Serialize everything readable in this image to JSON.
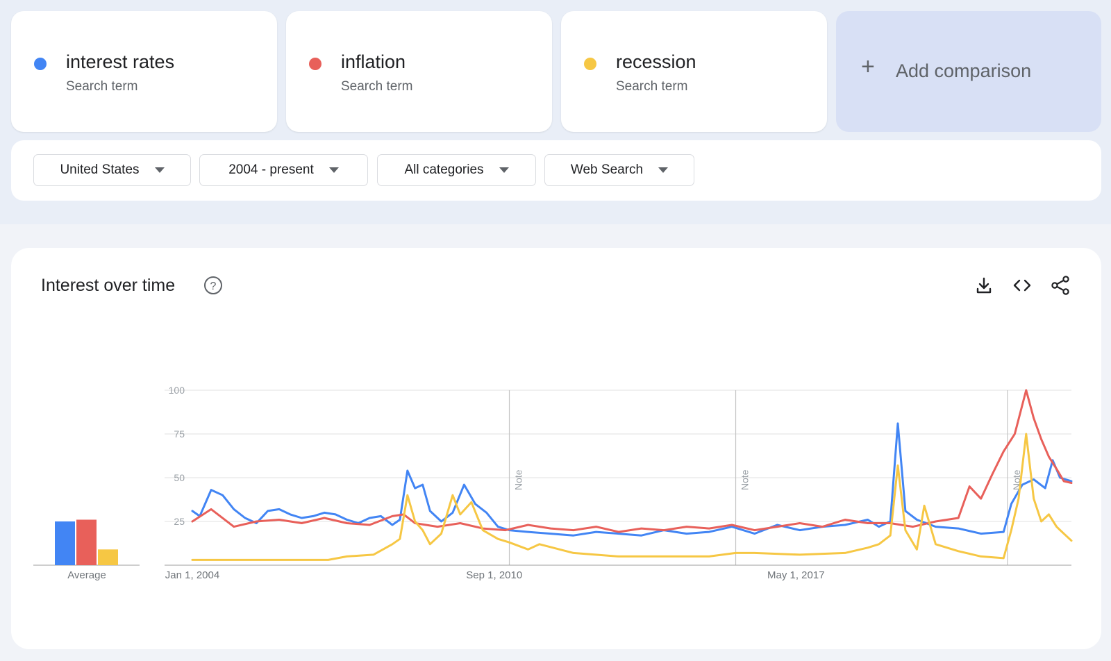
{
  "terms": [
    {
      "name": "interest rates",
      "type": "Search term",
      "color": "#4285f4"
    },
    {
      "name": "inflation",
      "type": "Search term",
      "color": "#e8605a"
    },
    {
      "name": "recession",
      "type": "Search term",
      "color": "#f6c744"
    }
  ],
  "add_comparison": {
    "icon": "plus-icon",
    "label": "Add comparison"
  },
  "filters": [
    {
      "label": "United States"
    },
    {
      "label": "2004 - present"
    },
    {
      "label": "All categories"
    },
    {
      "label": "Web Search"
    }
  ],
  "chart_panel": {
    "title": "Interest over time",
    "icons": [
      "help-icon",
      "download-icon",
      "embed-code-icon",
      "share-icon"
    ]
  },
  "chart_data": [
    {
      "type": "bar",
      "categories": [
        "interest rates",
        "inflation",
        "recession"
      ],
      "values": [
        25,
        26,
        9
      ],
      "xlabel": "Average",
      "colors": [
        "#4285f4",
        "#e8605a",
        "#f6c744"
      ]
    },
    {
      "type": "line",
      "x_range": [
        "2004-01-01",
        "2023-06-01"
      ],
      "x_ticks": [
        {
          "date": "2004-01-01",
          "label": "Jan 1, 2004"
        },
        {
          "date": "2010-09-01",
          "label": "Sep 1, 2010"
        },
        {
          "date": "2017-05-01",
          "label": "May 1, 2017"
        }
      ],
      "ylim": [
        0,
        100
      ],
      "y_ticks": [
        25,
        50,
        75,
        100
      ],
      "grid": true,
      "notes": [
        {
          "date": "2011-01-01",
          "label": "Note"
        },
        {
          "date": "2016-01-01",
          "label": "Note"
        },
        {
          "date": "2022-01-01",
          "label": "Note"
        }
      ],
      "series": [
        {
          "name": "interest rates",
          "color": "#4285f4",
          "points": [
            [
              "2004-01-01",
              31
            ],
            [
              "2004-03-01",
              28
            ],
            [
              "2004-06-01",
              43
            ],
            [
              "2004-09-01",
              40
            ],
            [
              "2004-12-01",
              32
            ],
            [
              "2005-03-01",
              27
            ],
            [
              "2005-06-01",
              24
            ],
            [
              "2005-09-01",
              31
            ],
            [
              "2005-12-01",
              32
            ],
            [
              "2006-03-01",
              29
            ],
            [
              "2006-06-01",
              27
            ],
            [
              "2006-09-01",
              28
            ],
            [
              "2006-12-01",
              30
            ],
            [
              "2007-03-01",
              29
            ],
            [
              "2007-06-01",
              26
            ],
            [
              "2007-09-01",
              24
            ],
            [
              "2007-12-01",
              27
            ],
            [
              "2008-03-01",
              28
            ],
            [
              "2008-06-01",
              23
            ],
            [
              "2008-08-01",
              26
            ],
            [
              "2008-10-01",
              54
            ],
            [
              "2008-12-01",
              44
            ],
            [
              "2009-02-01",
              46
            ],
            [
              "2009-04-01",
              31
            ],
            [
              "2009-07-01",
              25
            ],
            [
              "2009-10-01",
              30
            ],
            [
              "2010-01-01",
              46
            ],
            [
              "2010-04-01",
              35
            ],
            [
              "2010-07-01",
              30
            ],
            [
              "2010-10-01",
              22
            ],
            [
              "2011-01-01",
              20
            ],
            [
              "2011-06-01",
              19
            ],
            [
              "2011-12-01",
              18
            ],
            [
              "2012-06-01",
              17
            ],
            [
              "2012-12-01",
              19
            ],
            [
              "2013-06-01",
              18
            ],
            [
              "2013-12-01",
              17
            ],
            [
              "2014-06-01",
              20
            ],
            [
              "2014-12-01",
              18
            ],
            [
              "2015-06-01",
              19
            ],
            [
              "2015-12-01",
              22
            ],
            [
              "2016-06-01",
              18
            ],
            [
              "2016-12-01",
              23
            ],
            [
              "2017-06-01",
              20
            ],
            [
              "2017-12-01",
              22
            ],
            [
              "2018-06-01",
              23
            ],
            [
              "2018-12-01",
              26
            ],
            [
              "2019-03-01",
              22
            ],
            [
              "2019-06-01",
              25
            ],
            [
              "2019-08-01",
              81
            ],
            [
              "2019-10-01",
              31
            ],
            [
              "2020-01-01",
              26
            ],
            [
              "2020-06-01",
              22
            ],
            [
              "2020-12-01",
              21
            ],
            [
              "2021-06-01",
              18
            ],
            [
              "2021-12-01",
              19
            ],
            [
              "2022-02-01",
              35
            ],
            [
              "2022-05-01",
              46
            ],
            [
              "2022-08-01",
              49
            ],
            [
              "2022-11-01",
              44
            ],
            [
              "2023-01-01",
              60
            ],
            [
              "2023-03-01",
              50
            ],
            [
              "2023-06-01",
              48
            ]
          ]
        },
        {
          "name": "inflation",
          "color": "#e8605a",
          "points": [
            [
              "2004-01-01",
              25
            ],
            [
              "2004-06-01",
              32
            ],
            [
              "2004-12-01",
              22
            ],
            [
              "2005-06-01",
              25
            ],
            [
              "2005-12-01",
              26
            ],
            [
              "2006-06-01",
              24
            ],
            [
              "2006-12-01",
              27
            ],
            [
              "2007-06-01",
              24
            ],
            [
              "2007-12-01",
              23
            ],
            [
              "2008-06-01",
              28
            ],
            [
              "2008-09-01",
              29
            ],
            [
              "2008-12-01",
              24
            ],
            [
              "2009-06-01",
              22
            ],
            [
              "2009-12-01",
              24
            ],
            [
              "2010-06-01",
              21
            ],
            [
              "2010-12-01",
              20
            ],
            [
              "2011-06-01",
              23
            ],
            [
              "2011-12-01",
              21
            ],
            [
              "2012-06-01",
              20
            ],
            [
              "2012-12-01",
              22
            ],
            [
              "2013-06-01",
              19
            ],
            [
              "2013-12-01",
              21
            ],
            [
              "2014-06-01",
              20
            ],
            [
              "2014-12-01",
              22
            ],
            [
              "2015-06-01",
              21
            ],
            [
              "2015-12-01",
              23
            ],
            [
              "2016-06-01",
              20
            ],
            [
              "2016-12-01",
              22
            ],
            [
              "2017-06-01",
              24
            ],
            [
              "2017-12-01",
              22
            ],
            [
              "2018-06-01",
              26
            ],
            [
              "2018-12-01",
              24
            ],
            [
              "2019-06-01",
              24
            ],
            [
              "2019-12-01",
              22
            ],
            [
              "2020-06-01",
              25
            ],
            [
              "2020-12-01",
              27
            ],
            [
              "2021-03-01",
              45
            ],
            [
              "2021-06-01",
              38
            ],
            [
              "2021-09-01",
              52
            ],
            [
              "2021-12-01",
              65
            ],
            [
              "2022-03-01",
              75
            ],
            [
              "2022-06-01",
              100
            ],
            [
              "2022-08-01",
              84
            ],
            [
              "2022-10-01",
              72
            ],
            [
              "2022-12-01",
              62
            ],
            [
              "2023-02-01",
              55
            ],
            [
              "2023-04-01",
              48
            ],
            [
              "2023-06-01",
              47
            ]
          ]
        },
        {
          "name": "recession",
          "color": "#f6c744",
          "points": [
            [
              "2004-01-01",
              3
            ],
            [
              "2005-01-01",
              3
            ],
            [
              "2006-01-01",
              3
            ],
            [
              "2007-01-01",
              3
            ],
            [
              "2007-06-01",
              5
            ],
            [
              "2008-01-01",
              6
            ],
            [
              "2008-06-01",
              12
            ],
            [
              "2008-08-01",
              15
            ],
            [
              "2008-10-01",
              40
            ],
            [
              "2008-12-01",
              25
            ],
            [
              "2009-02-01",
              20
            ],
            [
              "2009-04-01",
              12
            ],
            [
              "2009-07-01",
              18
            ],
            [
              "2009-10-01",
              40
            ],
            [
              "2009-12-01",
              29
            ],
            [
              "2010-03-01",
              36
            ],
            [
              "2010-06-01",
              20
            ],
            [
              "2010-10-01",
              15
            ],
            [
              "2011-01-01",
              13
            ],
            [
              "2011-06-01",
              9
            ],
            [
              "2011-09-01",
              12
            ],
            [
              "2012-06-01",
              7
            ],
            [
              "2013-06-01",
              5
            ],
            [
              "2014-06-01",
              5
            ],
            [
              "2015-06-01",
              5
            ],
            [
              "2016-01-01",
              7
            ],
            [
              "2016-06-01",
              7
            ],
            [
              "2017-06-01",
              6
            ],
            [
              "2018-06-01",
              7
            ],
            [
              "2018-12-01",
              10
            ],
            [
              "2019-03-01",
              12
            ],
            [
              "2019-06-01",
              17
            ],
            [
              "2019-08-01",
              57
            ],
            [
              "2019-10-01",
              20
            ],
            [
              "2020-01-01",
              9
            ],
            [
              "2020-03-01",
              34
            ],
            [
              "2020-06-01",
              12
            ],
            [
              "2020-12-01",
              8
            ],
            [
              "2021-06-01",
              5
            ],
            [
              "2021-12-01",
              4
            ],
            [
              "2022-02-01",
              20
            ],
            [
              "2022-04-01",
              38
            ],
            [
              "2022-06-01",
              75
            ],
            [
              "2022-08-01",
              38
            ],
            [
              "2022-10-01",
              25
            ],
            [
              "2022-12-01",
              29
            ],
            [
              "2023-02-01",
              22
            ],
            [
              "2023-04-01",
              18
            ],
            [
              "2023-06-01",
              14
            ]
          ]
        }
      ]
    }
  ]
}
